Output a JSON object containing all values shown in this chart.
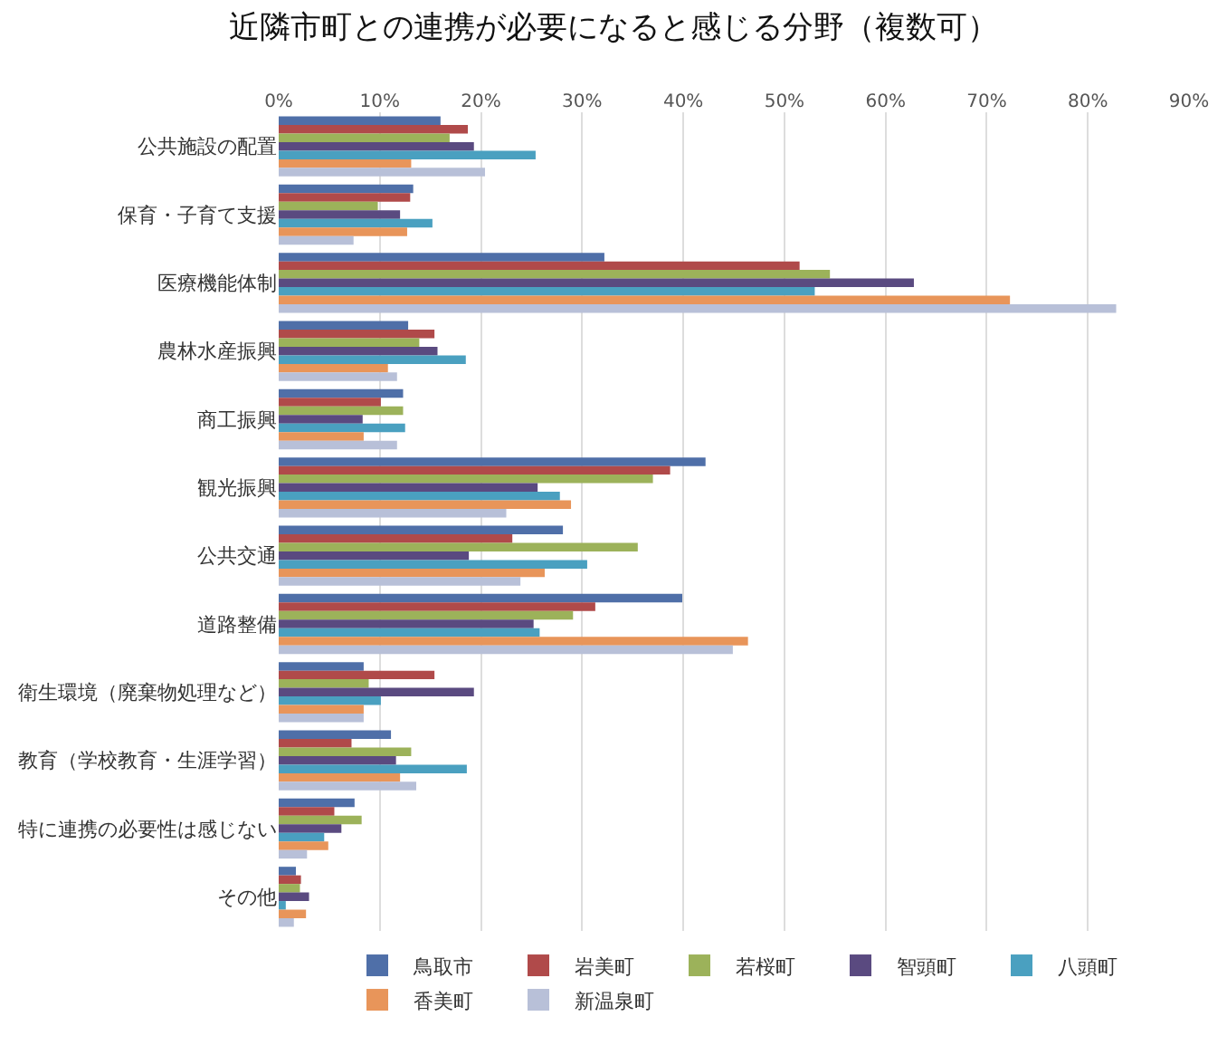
{
  "chart_data": {
    "type": "bar",
    "orientation": "horizontal",
    "title": "近隣市町との連携が必要になると感じる分野（複数可）",
    "categories": [
      "公共施設の配置",
      "保育・子育て支援",
      "医療機能体制",
      "農林水産振興",
      "商工振興",
      "観光振興",
      "公共交通",
      "道路整備",
      "衛生環境（廃棄物処理など）",
      "教育（学校教育・生涯学習）",
      "特に連携の必要性は感じない",
      "その他"
    ],
    "series": [
      {
        "name": "鳥取市",
        "color": "#4f6fa8",
        "values": [
          16.0,
          13.3,
          32.2,
          12.8,
          12.3,
          42.2,
          28.1,
          39.9,
          8.4,
          11.1,
          7.5,
          1.7
        ]
      },
      {
        "name": "岩美町",
        "color": "#b04a4a",
        "values": [
          18.7,
          13.0,
          51.5,
          15.4,
          10.1,
          38.7,
          23.1,
          31.3,
          15.4,
          7.2,
          5.5,
          2.2
        ]
      },
      {
        "name": "若桜町",
        "color": "#9cb25a",
        "values": [
          16.9,
          9.8,
          54.5,
          13.9,
          12.3,
          37.0,
          35.5,
          29.1,
          8.9,
          13.1,
          8.2,
          2.1
        ]
      },
      {
        "name": "智頭町",
        "color": "#5a4a80",
        "values": [
          19.3,
          12.0,
          62.8,
          15.7,
          8.3,
          25.6,
          18.8,
          25.2,
          19.3,
          11.6,
          6.2,
          3.0
        ]
      },
      {
        "name": "八頭町",
        "color": "#4aa0c0",
        "values": [
          25.4,
          15.2,
          53.0,
          18.5,
          12.5,
          27.8,
          30.5,
          25.8,
          10.1,
          18.6,
          4.5,
          0.7
        ]
      },
      {
        "name": "香美町",
        "color": "#e8955a",
        "values": [
          13.1,
          12.7,
          72.3,
          10.8,
          8.4,
          28.9,
          26.3,
          46.4,
          8.4,
          12.0,
          4.9,
          2.7
        ]
      },
      {
        "name": "新温泉町",
        "color": "#b8c0d8",
        "values": [
          20.4,
          7.4,
          82.8,
          11.7,
          11.7,
          22.5,
          23.9,
          44.9,
          8.4,
          13.6,
          2.8,
          1.5
        ]
      }
    ],
    "xlim": [
      0,
      90
    ],
    "xticks": [
      {
        "value": 0,
        "label": "0%"
      },
      {
        "value": 10,
        "label": "10%"
      },
      {
        "value": 20,
        "label": "20%"
      },
      {
        "value": 30,
        "label": "30%"
      },
      {
        "value": 40,
        "label": "40%"
      },
      {
        "value": 50,
        "label": "50%"
      },
      {
        "value": 60,
        "label": "60%"
      },
      {
        "value": 70,
        "label": "70%"
      },
      {
        "value": 80,
        "label": "80%"
      },
      {
        "value": 90,
        "label": "90%"
      }
    ],
    "grid": "x",
    "legend": "bottom"
  }
}
